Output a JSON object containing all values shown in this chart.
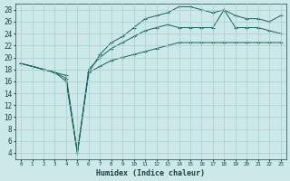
{
  "title": "",
  "xlabel": "Humidex (Indice chaleur)",
  "ylabel": "",
  "background_color": "#cce8e8",
  "grid_color": "#aacece",
  "line_color": "#1a6060",
  "xlim": [
    -0.5,
    23.5
  ],
  "ylim": [
    3,
    29
  ],
  "yticks": [
    4,
    6,
    8,
    10,
    12,
    14,
    16,
    18,
    20,
    22,
    24,
    26,
    28
  ],
  "xticks": [
    0,
    1,
    2,
    3,
    4,
    5,
    6,
    7,
    8,
    9,
    10,
    11,
    12,
    13,
    14,
    15,
    16,
    17,
    18,
    19,
    20,
    21,
    22,
    23
  ],
  "line1_x": [
    0,
    1,
    2,
    3,
    4,
    5,
    6,
    7,
    8,
    9,
    10,
    11,
    12,
    13,
    14,
    15,
    16,
    17,
    18,
    19,
    20,
    21,
    22,
    23
  ],
  "line1_y": [
    19,
    18.5,
    18,
    17.5,
    17,
    4,
    17.5,
    18.5,
    19.5,
    20.0,
    20.5,
    21.0,
    21.5,
    22.0,
    22.5,
    22.5,
    22.5,
    22.5,
    22.5,
    22.5,
    22.5,
    22.5,
    22.5,
    22.5
  ],
  "line2_x": [
    0,
    1,
    2,
    3,
    4,
    5,
    6,
    7,
    8,
    9,
    10,
    11,
    12,
    13,
    14,
    15,
    16,
    17,
    18,
    19,
    20,
    21,
    22,
    23
  ],
  "line2_y": [
    19,
    18.5,
    18,
    17.5,
    16.5,
    4,
    18,
    20,
    21.5,
    22.5,
    23.5,
    24.5,
    25.0,
    25.5,
    25.0,
    25.0,
    25.0,
    25.0,
    28.0,
    25.0,
    25.0,
    25.0,
    24.5,
    24.0
  ],
  "line3_x": [
    0,
    1,
    2,
    3,
    4,
    5,
    6,
    7,
    8,
    9,
    10,
    11,
    12,
    13,
    14,
    15,
    16,
    17,
    18,
    19,
    20,
    21,
    22,
    23
  ],
  "line3_y": [
    19,
    18.5,
    18,
    17.5,
    16,
    4,
    17.5,
    20.5,
    22.5,
    23.5,
    25.0,
    26.5,
    27.0,
    27.5,
    28.5,
    28.5,
    28.0,
    27.5,
    28.0,
    27.0,
    26.5,
    26.5,
    26.0,
    27.0
  ]
}
